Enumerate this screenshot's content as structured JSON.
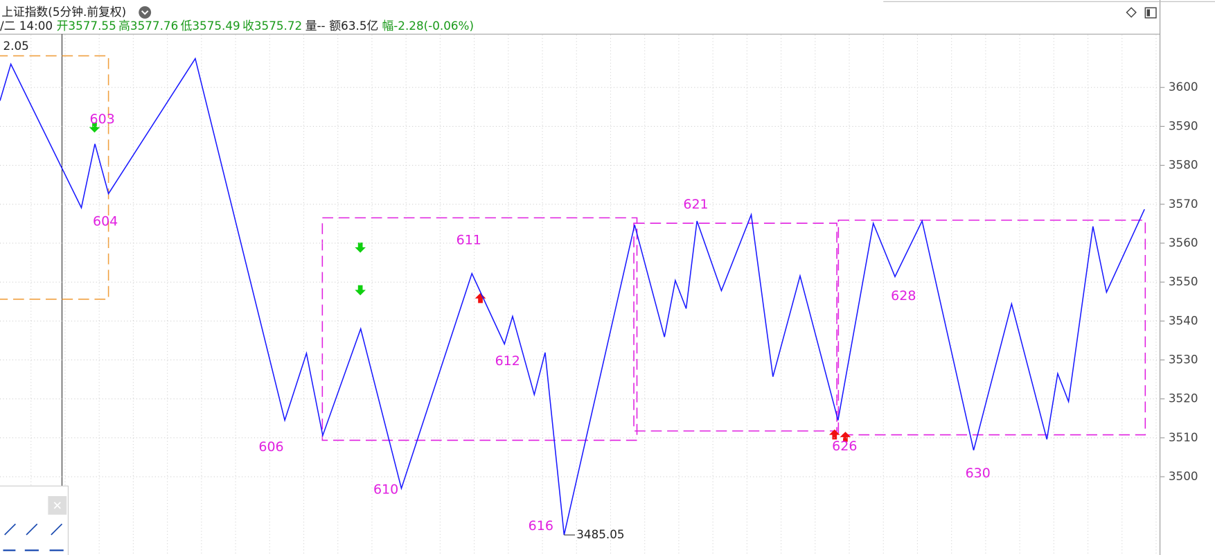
{
  "chart_data": {
    "type": "line",
    "title": "上证指数(5分钟.前复权)",
    "header_stats": [
      "/二 14:00",
      "开3577.55",
      "高3577.76",
      "低3575.49",
      "收3575.72",
      "量--",
      "额63.5亿",
      "幅-2.28(-0.06%)"
    ],
    "crosshair_label": "2.05",
    "x": [
      0,
      4,
      30,
      35,
      40,
      72,
      105,
      113,
      119,
      133,
      148,
      174,
      186,
      189,
      197,
      201,
      208,
      234,
      245,
      249,
      253,
      257,
      266,
      277,
      285,
      295,
      309,
      322,
      330,
      340,
      359,
      373,
      386,
      390,
      394,
      403,
      408,
      422
    ],
    "values": [
      3596.6,
      3606.0,
      3569.1,
      3585.5,
      3572.7,
      3607.4,
      3514.5,
      3531.7,
      3510.6,
      3538.0,
      3497.0,
      3552.2,
      3534.1,
      3541.2,
      3521.1,
      3531.9,
      3485.05,
      3564.7,
      3535.9,
      3550.4,
      3543.2,
      3565.7,
      3547.8,
      3567.3,
      3525.7,
      3551.6,
      3514.5,
      3565.1,
      3551.4,
      3565.7,
      3506.8,
      3544.4,
      3509.6,
      3526.5,
      3519.3,
      3564.3,
      3547.4,
      3568.7
    ],
    "color": "#1a1aff",
    "pivot_labels": [
      "603",
      "604",
      "606",
      "610",
      "611",
      "612",
      "616",
      "621",
      "626",
      "628",
      "630"
    ],
    "xlim": [
      0,
      428
    ],
    "ylim": [
      3479.9,
      3613.5
    ],
    "yticks": [
      3500,
      3510,
      3520,
      3530,
      3540,
      3550,
      3560,
      3570,
      3580,
      3590,
      3600
    ],
    "grid": true
  }
}
